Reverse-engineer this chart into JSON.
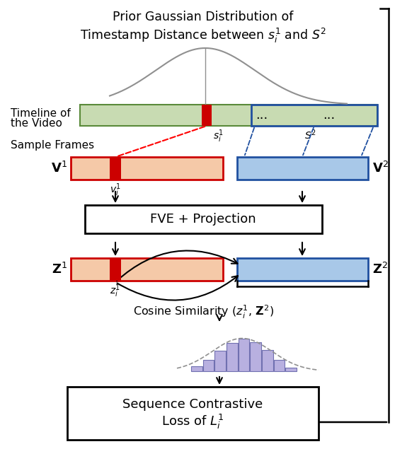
{
  "title_line1": "Prior Gaussian Distribution of",
  "title_line2": "Timestamp Distance between $s_i^1$ and $S^2$",
  "timeline_label1": "Timeline of",
  "timeline_label2": "the Video",
  "sample_frames_label": "Sample Frames",
  "v1_label": "$\\mathbf{V}^1$",
  "v2_label": "$\\mathbf{V}^2$",
  "vi_label": "$v_i^1$",
  "fve_label": "FVE + Projection",
  "z1_label": "$\\mathbf{Z}^1$",
  "z2_label": "$\\mathbf{Z}^2$",
  "zi_label": "$z_i^1$",
  "cosine_label": "Cosine Similarity ($z_i^1$, $\\mathbf{Z}^2$)",
  "loss_line1": "Sequence Contrastive",
  "loss_line2": "Loss of $L_i^1$",
  "dots": "...",
  "color_green_fill": "#c8dbb2",
  "color_green_edge": "#5a8a3a",
  "color_salmon_fill": "#f5c9a8",
  "color_salmon_edge": "#cc3300",
  "color_blue_fill": "#a8c8e8",
  "color_blue_edge": "#2050a0",
  "color_red_fill": "#cc0000",
  "color_purple_fill": "#b8b0e0",
  "color_purple_edge": "#7070b0",
  "color_black": "#000000",
  "color_white": "#ffffff",
  "color_gray": "#909090"
}
